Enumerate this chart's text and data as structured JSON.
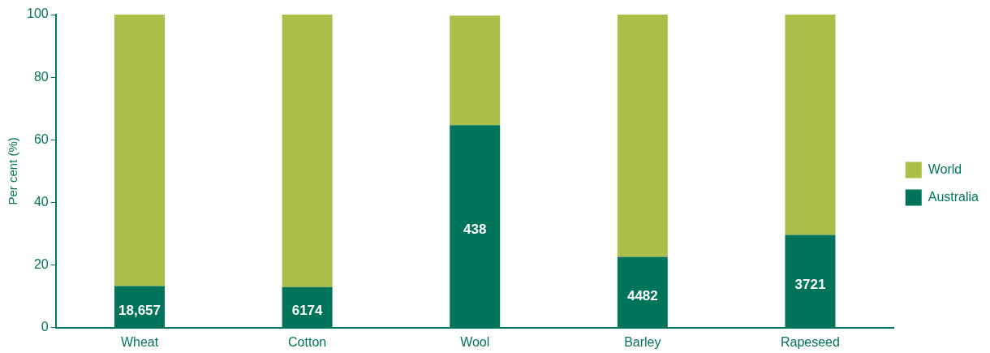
{
  "chart_data": {
    "type": "bar",
    "stacked": true,
    "ylabel": "Per cent (%)",
    "categories": [
      "Wheat",
      "Cotton",
      "Wool",
      "Barley",
      "Rapeseed"
    ],
    "series": [
      {
        "name": "Australia",
        "color": "#00745a",
        "values": [
          13.3,
          13.0,
          64.7,
          22.6,
          29.6
        ]
      },
      {
        "name": "World",
        "color": "#adbd4a",
        "values": [
          86.7,
          87.0,
          35.0,
          77.4,
          70.4
        ]
      }
    ],
    "annotations": [
      "18,657",
      "6174",
      "438",
      "4482",
      "3721"
    ],
    "ylim": [
      0,
      100
    ],
    "yticks": [
      0,
      20,
      40,
      60,
      80,
      100
    ],
    "grid": false,
    "legend": "right"
  }
}
